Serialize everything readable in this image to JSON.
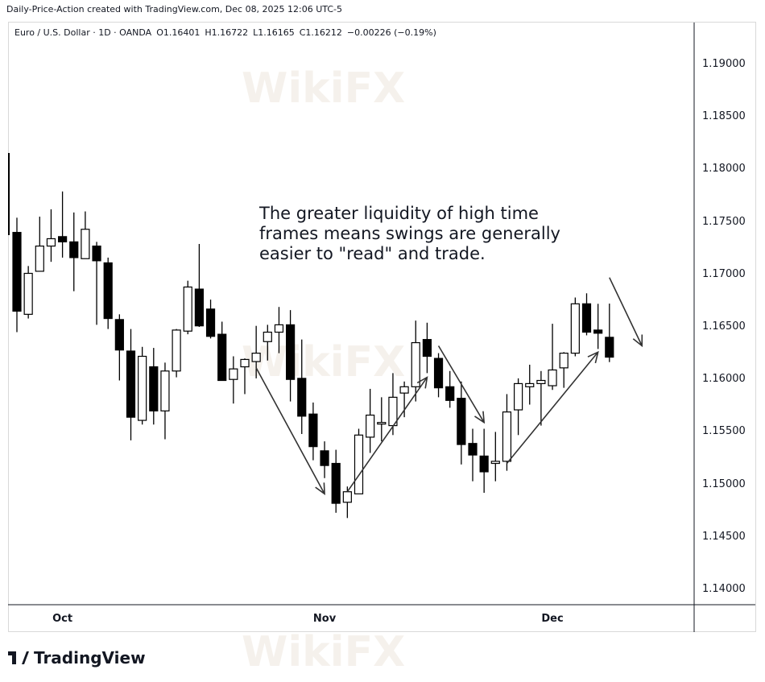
{
  "credit": "Daily-Price-Action created with TradingView.com, Dec 08, 2025 12:06 UTC-5",
  "legend": {
    "symbol": "Euro / U.S. Dollar · 1D · OANDA",
    "open": "O1.16401",
    "high": "H1.16722",
    "low": "L1.16165",
    "close": "C1.16212",
    "change": "−0.00226 (−0.19%)"
  },
  "annotation": "The greater liquidity of high time frames means swings are generally easier to \"read\" and trade.",
  "watermark": "WikiFX",
  "brand": "TradingView",
  "colors": {
    "up_body": "#ffffff",
    "down_body": "#000000",
    "wick": "#000000",
    "arrow": "#333333"
  },
  "chart_data": {
    "type": "candlestick",
    "title": "",
    "y_ticks": [
      "1.19000",
      "1.18500",
      "1.18000",
      "1.17500",
      "1.17000",
      "1.16500",
      "1.16000",
      "1.15500",
      "1.15000",
      "1.14500",
      "1.14000"
    ],
    "ylim": [
      1.1371,
      1.1953
    ],
    "x_ticks": [
      {
        "label": "Oct",
        "date": "2025-10-01"
      },
      {
        "label": "Nov",
        "date": "2025-11-03"
      },
      {
        "label": "Dec",
        "date": "2025-12-01"
      }
    ],
    "grid": false,
    "candles": [
      {
        "date": "2025-09-25",
        "o": 1.174,
        "h": 1.1754,
        "l": 1.1645,
        "c": 1.1665
      },
      {
        "date": "2025-09-26",
        "o": 1.1662,
        "h": 1.1708,
        "l": 1.1658,
        "c": 1.1701
      },
      {
        "date": "2025-09-29",
        "o": 1.1703,
        "h": 1.1755,
        "l": 1.1703,
        "c": 1.1727
      },
      {
        "date": "2025-09-30",
        "o": 1.1727,
        "h": 1.1762,
        "l": 1.1712,
        "c": 1.1734
      },
      {
        "date": "2025-10-01",
        "o": 1.1736,
        "h": 1.1779,
        "l": 1.1716,
        "c": 1.1731
      },
      {
        "date": "2025-10-02",
        "o": 1.1731,
        "h": 1.1759,
        "l": 1.1684,
        "c": 1.1716
      },
      {
        "date": "2025-10-03",
        "o": 1.1715,
        "h": 1.176,
        "l": 1.1715,
        "c": 1.1743
      },
      {
        "date": "2025-10-06",
        "o": 1.1727,
        "h": 1.1731,
        "l": 1.1652,
        "c": 1.1713
      },
      {
        "date": "2025-10-07",
        "o": 1.1711,
        "h": 1.1716,
        "l": 1.1648,
        "c": 1.1658
      },
      {
        "date": "2025-10-08",
        "o": 1.1657,
        "h": 1.1662,
        "l": 1.1599,
        "c": 1.1628
      },
      {
        "date": "2025-10-09",
        "o": 1.1627,
        "h": 1.1648,
        "l": 1.1542,
        "c": 1.1564
      },
      {
        "date": "2025-10-10",
        "o": 1.1561,
        "h": 1.1631,
        "l": 1.1557,
        "c": 1.1622
      },
      {
        "date": "2025-10-13",
        "o": 1.1612,
        "h": 1.163,
        "l": 1.1557,
        "c": 1.157
      },
      {
        "date": "2025-10-14",
        "o": 1.157,
        "h": 1.1616,
        "l": 1.1543,
        "c": 1.1608
      },
      {
        "date": "2025-10-15",
        "o": 1.1608,
        "h": 1.1648,
        "l": 1.1602,
        "c": 1.1647
      },
      {
        "date": "2025-10-16",
        "o": 1.1646,
        "h": 1.1694,
        "l": 1.1643,
        "c": 1.1688
      },
      {
        "date": "2025-10-17",
        "o": 1.1686,
        "h": 1.1729,
        "l": 1.165,
        "c": 1.1651
      },
      {
        "date": "2025-10-20",
        "o": 1.1667,
        "h": 1.1676,
        "l": 1.1639,
        "c": 1.1641
      },
      {
        "date": "2025-10-21",
        "o": 1.1643,
        "h": 1.1655,
        "l": 1.1599,
        "c": 1.1599
      },
      {
        "date": "2025-10-22",
        "o": 1.16,
        "h": 1.1622,
        "l": 1.1577,
        "c": 1.161
      },
      {
        "date": "2025-10-23",
        "o": 1.1612,
        "h": 1.162,
        "l": 1.1586,
        "c": 1.1619
      },
      {
        "date": "2025-10-24",
        "o": 1.1617,
        "h": 1.1651,
        "l": 1.1601,
        "c": 1.1625
      },
      {
        "date": "2025-10-27",
        "o": 1.1636,
        "h": 1.1652,
        "l": 1.1618,
        "c": 1.1645
      },
      {
        "date": "2025-10-28",
        "o": 1.1645,
        "h": 1.1669,
        "l": 1.1625,
        "c": 1.1652
      },
      {
        "date": "2025-10-29",
        "o": 1.1652,
        "h": 1.1666,
        "l": 1.1579,
        "c": 1.16
      },
      {
        "date": "2025-10-30",
        "o": 1.1601,
        "h": 1.1638,
        "l": 1.1548,
        "c": 1.1565
      },
      {
        "date": "2025-10-31",
        "o": 1.1567,
        "h": 1.1578,
        "l": 1.1523,
        "c": 1.1536
      },
      {
        "date": "2025-11-03",
        "o": 1.1532,
        "h": 1.1541,
        "l": 1.1506,
        "c": 1.1518
      },
      {
        "date": "2025-11-04",
        "o": 1.152,
        "h": 1.1533,
        "l": 1.1473,
        "c": 1.1482
      },
      {
        "date": "2025-11-05",
        "o": 1.1483,
        "h": 1.1498,
        "l": 1.1468,
        "c": 1.1493
      },
      {
        "date": "2025-11-06",
        "o": 1.1491,
        "h": 1.1553,
        "l": 1.1491,
        "c": 1.1547
      },
      {
        "date": "2025-11-07",
        "o": 1.1545,
        "h": 1.1591,
        "l": 1.153,
        "c": 1.1566
      },
      {
        "date": "2025-11-10",
        "o": 1.1558,
        "h": 1.1583,
        "l": 1.1541,
        "c": 1.1559
      },
      {
        "date": "2025-11-11",
        "o": 1.1556,
        "h": 1.1606,
        "l": 1.1547,
        "c": 1.1583
      },
      {
        "date": "2025-11-12",
        "o": 1.1587,
        "h": 1.1598,
        "l": 1.1564,
        "c": 1.1593
      },
      {
        "date": "2025-11-13",
        "o": 1.1593,
        "h": 1.1656,
        "l": 1.1579,
        "c": 1.1635
      },
      {
        "date": "2025-11-14",
        "o": 1.1638,
        "h": 1.1654,
        "l": 1.1606,
        "c": 1.1622
      },
      {
        "date": "2025-11-17",
        "o": 1.162,
        "h": 1.1625,
        "l": 1.1583,
        "c": 1.1592
      },
      {
        "date": "2025-11-18",
        "o": 1.1593,
        "h": 1.1608,
        "l": 1.1573,
        "c": 1.158
      },
      {
        "date": "2025-11-19",
        "o": 1.1582,
        "h": 1.1598,
        "l": 1.1519,
        "c": 1.1538
      },
      {
        "date": "2025-11-20",
        "o": 1.1539,
        "h": 1.1553,
        "l": 1.1503,
        "c": 1.1528
      },
      {
        "date": "2025-11-21",
        "o": 1.1527,
        "h": 1.1553,
        "l": 1.1492,
        "c": 1.1512
      },
      {
        "date": "2025-11-24",
        "o": 1.152,
        "h": 1.155,
        "l": 1.1503,
        "c": 1.1522
      },
      {
        "date": "2025-11-25",
        "o": 1.1522,
        "h": 1.1586,
        "l": 1.1513,
        "c": 1.1569
      },
      {
        "date": "2025-11-26",
        "o": 1.1571,
        "h": 1.1601,
        "l": 1.1547,
        "c": 1.1596
      },
      {
        "date": "2025-11-27",
        "o": 1.1593,
        "h": 1.1614,
        "l": 1.1576,
        "c": 1.1596
      },
      {
        "date": "2025-11-28",
        "o": 1.1596,
        "h": 1.1608,
        "l": 1.1556,
        "c": 1.1599
      },
      {
        "date": "2025-12-01",
        "o": 1.1594,
        "h": 1.1653,
        "l": 1.159,
        "c": 1.1609
      },
      {
        "date": "2025-12-02",
        "o": 1.1611,
        "h": 1.1626,
        "l": 1.1592,
        "c": 1.1625
      },
      {
        "date": "2025-12-03",
        "o": 1.1625,
        "h": 1.1678,
        "l": 1.1622,
        "c": 1.1672
      },
      {
        "date": "2025-12-04",
        "o": 1.1672,
        "h": 1.1682,
        "l": 1.1642,
        "c": 1.1645
      },
      {
        "date": "2025-12-05",
        "o": 1.1647,
        "h": 1.1672,
        "l": 1.1629,
        "c": 1.1644
      },
      {
        "date": "2025-12-08",
        "o": 1.16401,
        "h": 1.16722,
        "l": 1.16165,
        "c": 1.16212
      }
    ],
    "arrows": [
      {
        "from": {
          "date": "2025-10-24",
          "price": 1.1611
        },
        "to": {
          "date": "2025-11-03",
          "price": 1.1491
        },
        "direction": "down"
      },
      {
        "from": {
          "date": "2025-11-05",
          "price": 1.1493
        },
        "to": {
          "date": "2025-11-14",
          "price": 1.1602
        },
        "direction": "up"
      },
      {
        "from": {
          "date": "2025-11-17",
          "price": 1.1632
        },
        "to": {
          "date": "2025-11-21",
          "price": 1.1559
        },
        "direction": "down"
      },
      {
        "from": {
          "date": "2025-11-25",
          "price": 1.152
        },
        "to": {
          "date": "2025-12-05",
          "price": 1.1626
        },
        "direction": "up"
      },
      {
        "from": {
          "date": "2025-12-08",
          "price": 1.1697
        },
        "to": {
          "date": "2025-12-12",
          "price": 1.1632
        },
        "direction": "down"
      }
    ]
  }
}
